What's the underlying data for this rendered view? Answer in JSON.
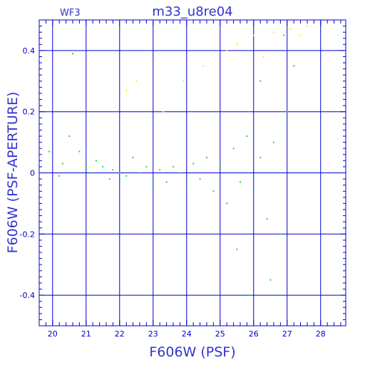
{
  "chart_data": {
    "type": "scatter",
    "title": "m33_u8re04",
    "chip_label": "WF3",
    "xlabel": "F606W (PSF)",
    "ylabel": "F606W (PSF-APERTURE)",
    "xlim": [
      19.6,
      28.75
    ],
    "ylim": [
      -0.5,
      0.5
    ],
    "x_ticks": [
      20,
      21,
      22,
      23,
      24,
      25,
      26,
      27,
      28
    ],
    "x_tick_labels": [
      "20",
      "21",
      "22",
      "23",
      "24",
      "25",
      "26",
      "27",
      "28"
    ],
    "y_ticks": [
      -0.4,
      -0.2,
      0,
      0.2,
      0.4
    ],
    "y_tick_labels": [
      "-0.4",
      "-0.2",
      "0",
      "0.2",
      "0.4"
    ],
    "grid": true,
    "colors": {
      "axes": "#0000cc",
      "text": "#3333cc",
      "series_primary": "#22dd22",
      "series_secondary": "#ffee00"
    },
    "series": [
      {
        "color": "#22dd22",
        "points": [
          [
            19.9,
            0.07
          ],
          [
            20.2,
            -0.01
          ],
          [
            20.3,
            0.03
          ],
          [
            20.5,
            0.12
          ],
          [
            20.6,
            0.39
          ],
          [
            20.8,
            0.07
          ],
          [
            21.0,
            0.02
          ],
          [
            21.2,
            0.0
          ],
          [
            21.3,
            0.04
          ],
          [
            21.5,
            0.02
          ],
          [
            21.7,
            -0.02
          ],
          [
            21.8,
            0.01
          ],
          [
            22.0,
            0.0
          ],
          [
            22.2,
            -0.01
          ],
          [
            22.4,
            0.05
          ],
          [
            22.6,
            0.0
          ],
          [
            22.8,
            0.02
          ],
          [
            23.0,
            -0.02
          ],
          [
            23.2,
            0.01
          ],
          [
            23.4,
            -0.03
          ],
          [
            23.6,
            0.02
          ],
          [
            23.8,
            0.0
          ],
          [
            24.0,
            -0.04
          ],
          [
            24.2,
            0.03
          ],
          [
            24.4,
            -0.02
          ],
          [
            24.6,
            0.05
          ],
          [
            24.8,
            -0.06
          ],
          [
            25.0,
            0.02
          ],
          [
            25.2,
            -0.1
          ],
          [
            25.4,
            0.08
          ],
          [
            25.6,
            -0.03
          ],
          [
            25.8,
            0.12
          ],
          [
            26.0,
            -0.08
          ],
          [
            26.2,
            0.05
          ],
          [
            26.4,
            -0.15
          ],
          [
            26.6,
            0.1
          ],
          [
            26.8,
            -0.2
          ],
          [
            27.0,
            0.2
          ],
          [
            26.5,
            -0.35
          ],
          [
            26.2,
            0.3
          ],
          [
            25.5,
            -0.25
          ],
          [
            27.2,
            0.35
          ],
          [
            26.9,
            0.45
          ],
          [
            25.9,
            -0.4
          ]
        ]
      },
      {
        "color": "#ffee00",
        "points": [
          [
            22.2,
            0.27
          ],
          [
            22.5,
            0.3
          ],
          [
            23.3,
            0.2
          ],
          [
            23.9,
            0.3
          ],
          [
            24.5,
            0.35
          ],
          [
            25.5,
            0.42
          ],
          [
            26.0,
            0.45
          ],
          [
            26.6,
            0.46
          ],
          [
            27.1,
            0.47
          ],
          [
            27.4,
            0.45
          ],
          [
            26.3,
            0.38
          ],
          [
            25.2,
            0.4
          ],
          [
            27.6,
            0.48
          ]
        ]
      }
    ]
  }
}
